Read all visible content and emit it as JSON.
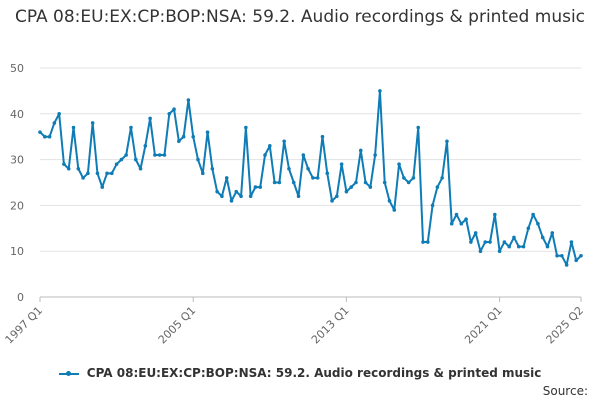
{
  "chart_data": {
    "type": "line",
    "title": "CPA 08:EU:EX:CP:BOP:NSA: 59.2. Audio recordings & printed music",
    "yticks": [
      "0",
      "10",
      "20",
      "30",
      "40",
      "50"
    ],
    "ylim": [
      0,
      50
    ],
    "xticks": [
      {
        "label": "1997 Q1",
        "index": 0
      },
      {
        "label": "2005 Q1",
        "index": 32
      },
      {
        "label": "2013 Q1",
        "index": 64
      },
      {
        "label": "2021 Q1",
        "index": 96
      },
      {
        "label": "2025 Q2",
        "index": 113
      }
    ],
    "grid": true,
    "legend_position": "bottom",
    "color": "#0f7cb6",
    "series": [
      {
        "name": "CPA 08:EU:EX:CP:BOP:NSA: 59.2. Audio recordings & printed music",
        "start": "1997 Q1",
        "end": "2025 Q2",
        "values": [
          36,
          35,
          35,
          38,
          40,
          29,
          28,
          37,
          28,
          26,
          27,
          38,
          27,
          24,
          27,
          27,
          29,
          30,
          31,
          37,
          30,
          28,
          33,
          39,
          31,
          31,
          31,
          40,
          41,
          34,
          35,
          43,
          35,
          30,
          27,
          36,
          28,
          23,
          22,
          26,
          21,
          23,
          22,
          37,
          22,
          24,
          24,
          31,
          33,
          25,
          25,
          34,
          28,
          25,
          22,
          31,
          28,
          26,
          26,
          35,
          27,
          21,
          22,
          29,
          23,
          24,
          25,
          32,
          25,
          24,
          31,
          45,
          25,
          21,
          19,
          29,
          26,
          25,
          26,
          37,
          12,
          12,
          20,
          24,
          26,
          34,
          16,
          18,
          16,
          17,
          12,
          14,
          10,
          12,
          12,
          18,
          10,
          12,
          11,
          13,
          11,
          11,
          15,
          18,
          16,
          13,
          11,
          14,
          9,
          9,
          7,
          12,
          8,
          9
        ]
      }
    ]
  },
  "legend": {
    "label": "CPA 08:EU:EX:CP:BOP:NSA: 59.2. Audio recordings & printed music"
  },
  "source": {
    "label": "Source:"
  }
}
